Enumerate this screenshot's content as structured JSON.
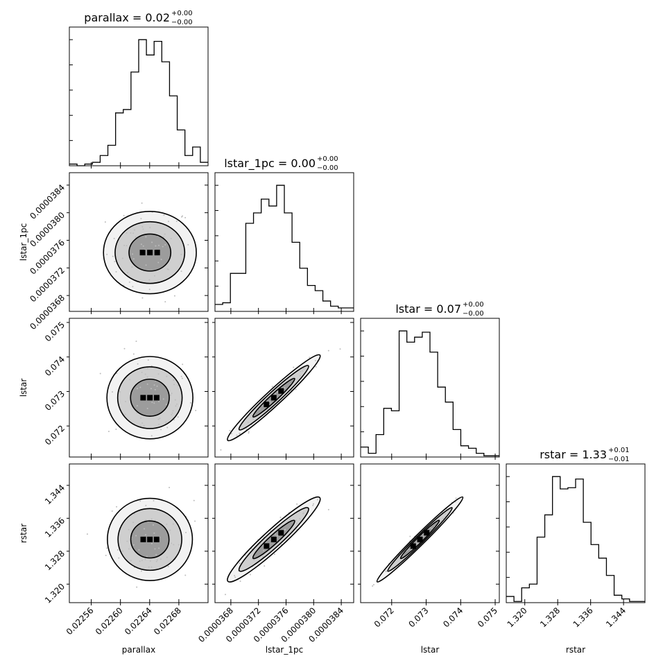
{
  "chart_data": {
    "type": "corner",
    "parameters": [
      {
        "name": "parallax",
        "label": "parallax",
        "median": "0.02",
        "plus": "+0.00",
        "minus": "−0.00",
        "range": [
          0.02253,
          0.02272
        ],
        "ticks": [
          0.02256,
          0.0226,
          0.02264,
          0.02268
        ],
        "tick_labels": [
          "0.02256",
          "0.02260",
          "0.02264",
          "0.02268"
        ]
      },
      {
        "name": "lstar_1pc",
        "label": "lstar_1pc",
        "median": "0.00",
        "plus": "+0.00",
        "minus": "−0.00",
        "range": [
          3.657e-05,
          3.858e-05
        ],
        "ticks": [
          3.68e-05,
          3.72e-05,
          3.76e-05,
          3.8e-05,
          3.84e-05
        ],
        "tick_labels": [
          "0.0000368",
          "0.0000372",
          "0.0000376",
          "0.0000380",
          "0.0000384"
        ]
      },
      {
        "name": "lstar",
        "label": "lstar",
        "median": "0.07",
        "plus": "+0.00",
        "minus": "−0.00",
        "range": [
          0.0711,
          0.07512
        ],
        "ticks": [
          0.072,
          0.073,
          0.074,
          0.075
        ],
        "tick_labels": [
          "0.072",
          "0.073",
          "0.074",
          "0.075"
        ]
      },
      {
        "name": "rstar",
        "label": "rstar",
        "median": "1.33",
        "plus": "+0.01",
        "minus": "−0.01",
        "range": [
          1.3155,
          1.3492
        ],
        "ticks": [
          1.32,
          1.328,
          1.336,
          1.344
        ],
        "tick_labels": [
          "1.320",
          "1.328",
          "1.336",
          "1.344"
        ]
      }
    ],
    "histograms": {
      "parallax": [
        1,
        0,
        1,
        2,
        6,
        12,
        31,
        33,
        55,
        74,
        65,
        73,
        61,
        41,
        21,
        6,
        11,
        2
      ],
      "lstar_1pc": [
        4,
        5,
        22,
        22,
        51,
        57,
        65,
        61,
        73,
        57,
        40,
        25,
        15,
        12,
        6,
        3,
        2,
        2
      ],
      "lstar": [
        8,
        3,
        18,
        39,
        37,
        101,
        92,
        96,
        100,
        84,
        56,
        44,
        22,
        9,
        7,
        3,
        1,
        1
      ],
      "rstar": [
        5,
        1,
        12,
        15,
        53,
        71,
        102,
        92,
        93,
        100,
        65,
        47,
        36,
        22,
        6,
        3,
        1,
        1
      ]
    }
  }
}
